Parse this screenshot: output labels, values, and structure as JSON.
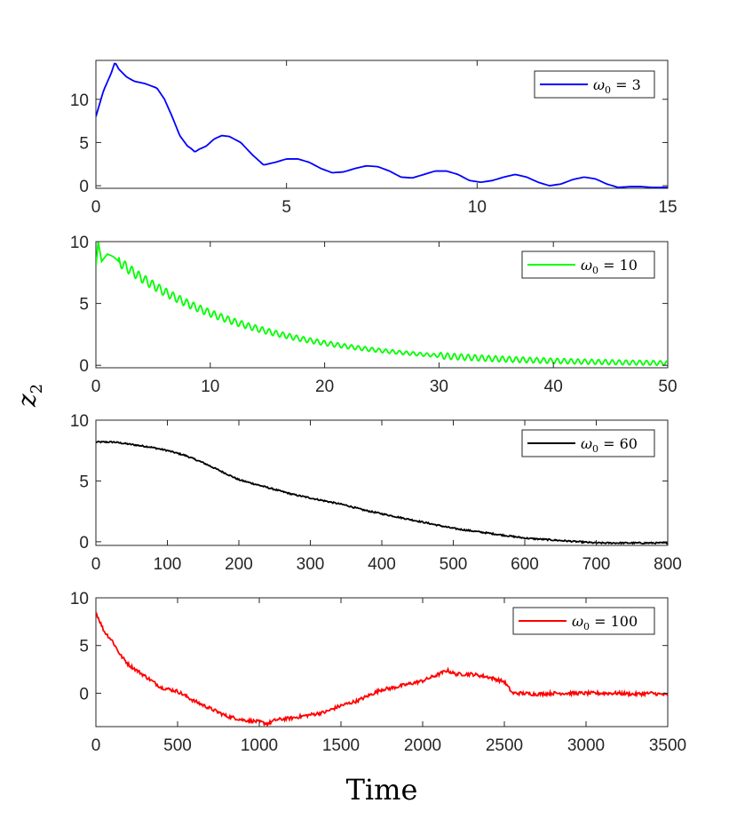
{
  "xlabel": "Time",
  "ylabel": "z",
  "ylabel_subscript": "2",
  "chart_data": [
    {
      "type": "line",
      "legend": {
        "prefix": "ω",
        "sub": "0",
        "eq": " = ",
        "value": "3"
      },
      "color": "#0000ff",
      "xlim": [
        0,
        15
      ],
      "ylim": [
        -0.3,
        14.5
      ],
      "xticks": [
        0,
        5,
        10,
        15
      ],
      "xtick_labels": [
        "0",
        "5",
        "10",
        "15"
      ],
      "yticks": [
        0,
        5,
        10
      ],
      "ytick_labels": [
        "0",
        "5",
        "10"
      ],
      "x": [
        0,
        0.1,
        0.2,
        0.3,
        0.4,
        0.5,
        0.6,
        0.8,
        1.0,
        1.3,
        1.6,
        1.8,
        2.0,
        2.2,
        2.4,
        2.5,
        2.6,
        2.7,
        2.9,
        3.1,
        3.3,
        3.5,
        3.8,
        4.1,
        4.4,
        4.7,
        5.0,
        5.3,
        5.6,
        5.9,
        6.2,
        6.5,
        6.8,
        7.1,
        7.4,
        7.7,
        8.0,
        8.3,
        8.6,
        8.9,
        9.2,
        9.5,
        9.8,
        10.1,
        10.4,
        10.7,
        11.0,
        11.3,
        11.6,
        11.9,
        12.2,
        12.5,
        12.8,
        13.1,
        13.4,
        13.7,
        14.0,
        14.3,
        14.6,
        15.0
      ],
      "y": [
        8.0,
        9.5,
        11.0,
        12.0,
        13.0,
        14.3,
        13.5,
        12.6,
        12.1,
        11.8,
        11.3,
        10.0,
        8.0,
        5.8,
        4.6,
        4.3,
        3.9,
        4.2,
        4.6,
        5.4,
        5.8,
        5.7,
        5.0,
        3.6,
        2.4,
        2.7,
        3.1,
        3.1,
        2.7,
        2.0,
        1.5,
        1.6,
        2.0,
        2.3,
        2.2,
        1.7,
        1.0,
        0.9,
        1.3,
        1.7,
        1.7,
        1.3,
        0.6,
        0.4,
        0.6,
        1.0,
        1.3,
        1.0,
        0.4,
        0.0,
        0.2,
        0.7,
        1.0,
        0.8,
        0.2,
        -0.2,
        -0.1,
        -0.1,
        -0.2,
        -0.2
      ]
    },
    {
      "type": "line",
      "legend": {
        "prefix": "ω",
        "sub": "0",
        "eq": " = ",
        "value": "10"
      },
      "color": "#00ff00",
      "xlim": [
        0,
        50
      ],
      "ylim": [
        -0.2,
        10
      ],
      "xticks": [
        0,
        10,
        20,
        30,
        40,
        50
      ],
      "xtick_labels": [
        "0",
        "10",
        "20",
        "30",
        "40",
        "50"
      ],
      "yticks": [
        0,
        5,
        10
      ],
      "ytick_labels": [
        "0",
        "5",
        "10"
      ],
      "x": [
        0,
        0.2,
        0.5,
        1.0,
        1.5,
        2.0
      ],
      "y": [
        8.0,
        10.0,
        8.4,
        9.0,
        8.8,
        8.4
      ],
      "decay": {
        "x_start": 2.0,
        "y_start": 8.4,
        "tau": 11.5,
        "floor": 0.05,
        "osc_amp": 0.4,
        "osc_decay": 25,
        "osc_period": 0.6
      }
    },
    {
      "type": "line",
      "legend": {
        "prefix": "ω",
        "sub": "0",
        "eq": " = ",
        "value": "60"
      },
      "color": "#000000",
      "xlim": [
        0,
        800
      ],
      "ylim": [
        -0.3,
        10
      ],
      "xticks": [
        0,
        100,
        200,
        300,
        400,
        500,
        600,
        700,
        800
      ],
      "xtick_labels": [
        "0",
        "100",
        "200",
        "300",
        "400",
        "500",
        "600",
        "700",
        "800"
      ],
      "yticks": [
        0,
        5,
        10
      ],
      "ytick_labels": [
        "0",
        "5",
        "10"
      ],
      "x": [
        0,
        25,
        50,
        75,
        100,
        125,
        150,
        175,
        200,
        225,
        250,
        275,
        300,
        325,
        350,
        375,
        400,
        425,
        450,
        475,
        500,
        525,
        550,
        575,
        600,
        625,
        650,
        675,
        700,
        725,
        750,
        775,
        800
      ],
      "y": [
        8.2,
        8.2,
        8.0,
        7.8,
        7.5,
        7.1,
        6.5,
        5.8,
        5.1,
        4.7,
        4.3,
        3.9,
        3.6,
        3.3,
        3.0,
        2.6,
        2.3,
        2.0,
        1.7,
        1.4,
        1.1,
        0.9,
        0.7,
        0.5,
        0.3,
        0.2,
        0.1,
        0.0,
        -0.1,
        -0.1,
        -0.1,
        -0.1,
        -0.1
      ],
      "noise": 0.06
    },
    {
      "type": "line",
      "legend": {
        "prefix": "ω",
        "sub": "0",
        "eq": " = ",
        "value": "100"
      },
      "color": "#ff0000",
      "xlim": [
        0,
        3500
      ],
      "ylim": [
        -3.5,
        10
      ],
      "xticks": [
        0,
        500,
        1000,
        1500,
        2000,
        2500,
        3000,
        3500
      ],
      "xtick_labels": [
        "0",
        "500",
        "1000",
        "1500",
        "2000",
        "2500",
        "3000",
        "3500"
      ],
      "yticks": [
        0,
        5,
        10
      ],
      "ytick_labels": [
        "0",
        "5",
        "10"
      ],
      "x": [
        0,
        50,
        100,
        150,
        200,
        300,
        400,
        500,
        600,
        700,
        800,
        900,
        1000,
        1050,
        1100,
        1200,
        1300,
        1400,
        1500,
        1600,
        1700,
        1750,
        1800,
        1900,
        2000,
        2100,
        2150,
        2200,
        2300,
        2400,
        2500,
        2550,
        2600,
        2700,
        2800,
        2900,
        3000,
        3100,
        3200,
        3300,
        3400,
        3500
      ],
      "y": [
        8.5,
        6.5,
        5.5,
        4.0,
        3.0,
        1.8,
        0.6,
        0.2,
        -0.8,
        -1.6,
        -2.4,
        -2.8,
        -3.0,
        -3.2,
        -2.8,
        -2.6,
        -2.3,
        -2.0,
        -1.3,
        -0.8,
        0.0,
        0.4,
        0.5,
        0.9,
        1.3,
        2.0,
        2.4,
        2.0,
        2.0,
        1.7,
        1.2,
        0.0,
        0.0,
        -0.1,
        0.0,
        0.0,
        0.0,
        0.0,
        0.0,
        -0.1,
        0.0,
        -0.2
      ],
      "noise": 0.18
    }
  ]
}
